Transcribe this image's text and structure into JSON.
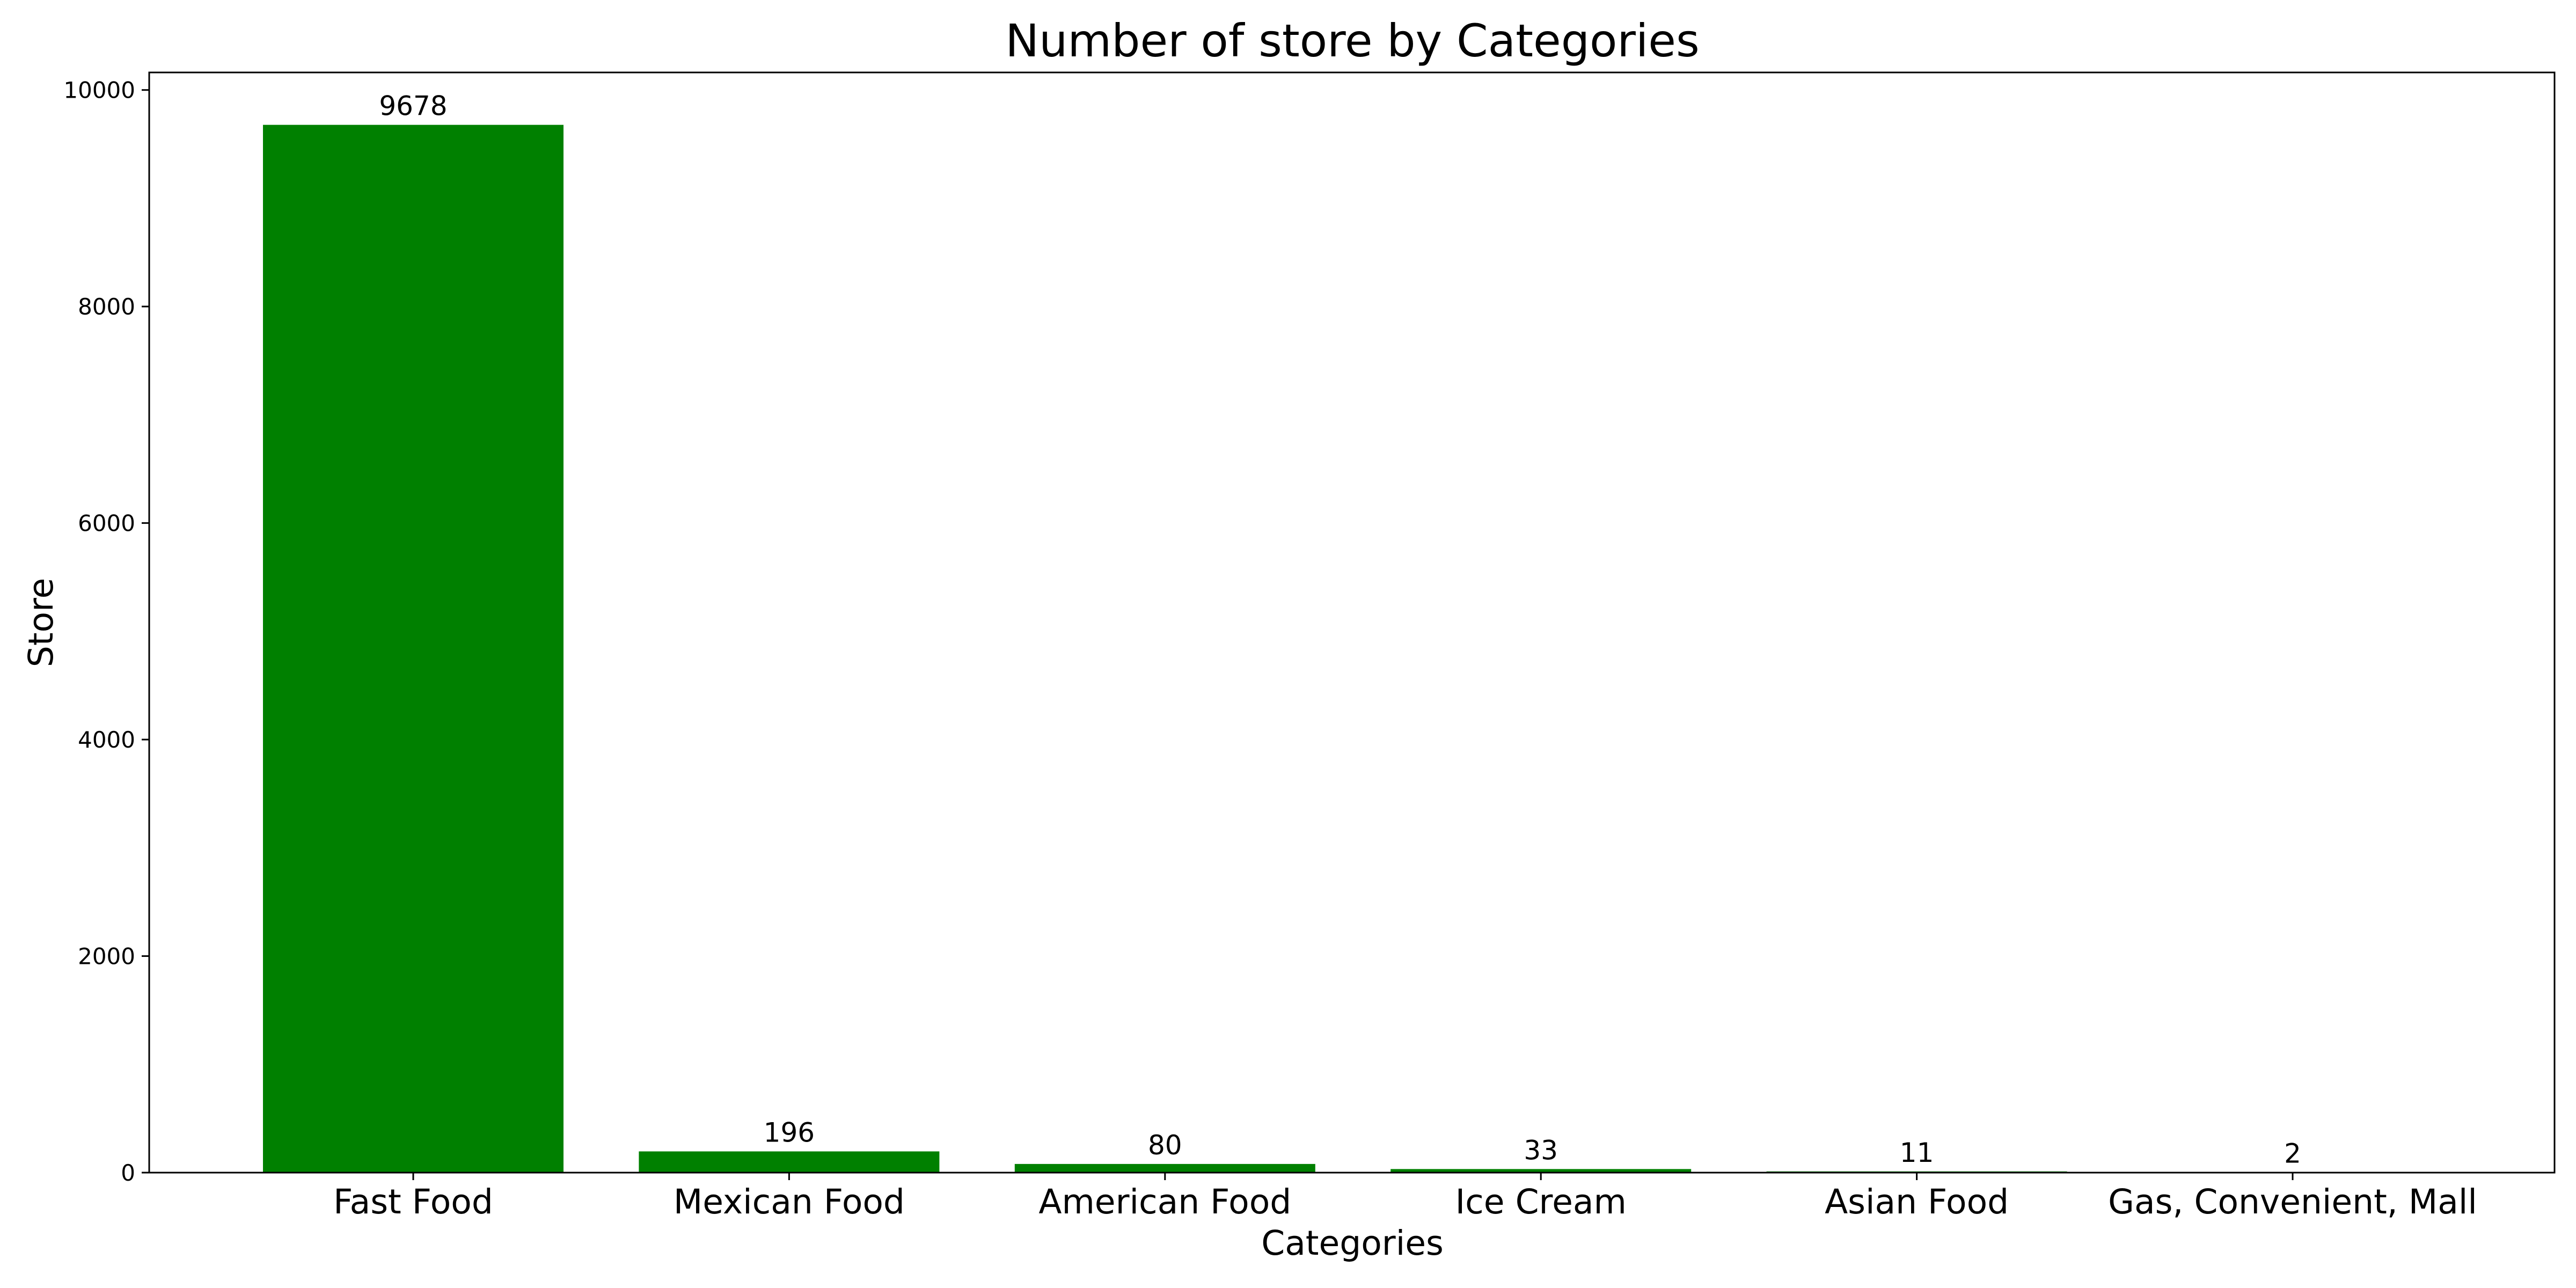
{
  "chart_data": {
    "type": "bar",
    "title": "Number of store by Categories",
    "xlabel": "Categories",
    "ylabel": "Store",
    "categories": [
      "Fast Food",
      "Mexican Food",
      "American Food",
      "Ice Cream",
      "Asian Food",
      "Gas, Convenient, Mall"
    ],
    "values": [
      9678,
      196,
      80,
      33,
      11,
      2
    ],
    "data_labels": [
      "9678",
      "196",
      "80",
      "33",
      "11",
      "2"
    ],
    "yticks": [
      0,
      2000,
      4000,
      6000,
      8000,
      10000
    ],
    "ytick_labels": [
      "0",
      "2000",
      "4000",
      "6000",
      "8000",
      "10000"
    ],
    "ylim": [
      0,
      10162
    ],
    "bar_color": "#008000",
    "grid": false,
    "legend": "none"
  }
}
